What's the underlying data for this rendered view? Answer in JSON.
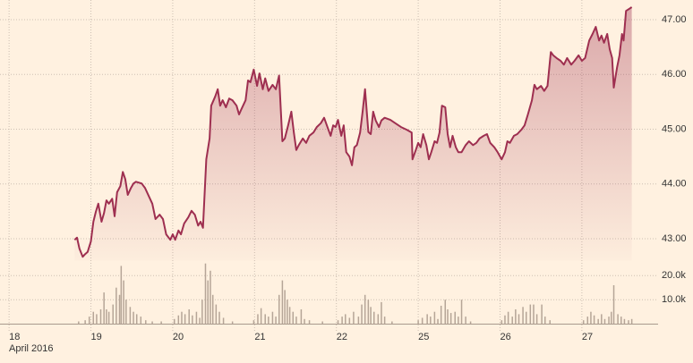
{
  "chart_data": [
    {
      "type": "area",
      "color": "#9e2f50",
      "x": [
        0.8,
        0.83,
        0.86,
        0.9,
        0.93,
        0.96,
        1.0,
        1.03,
        1.06,
        1.09,
        1.13,
        1.16,
        1.19,
        1.22,
        1.26,
        1.29,
        1.32,
        1.36,
        1.39,
        1.42,
        1.45,
        1.49,
        1.52,
        1.55,
        1.62,
        1.66,
        1.71,
        1.75,
        1.79,
        1.84,
        1.88,
        1.92,
        1.97,
        2.0,
        2.03,
        2.07,
        2.1,
        2.14,
        2.19,
        2.23,
        2.27,
        2.31,
        2.34,
        2.37,
        2.41,
        2.45,
        2.47,
        2.52,
        2.55,
        2.58,
        2.61,
        2.65,
        2.69,
        2.73,
        2.78,
        2.81,
        2.84,
        2.89,
        2.92,
        2.95,
        2.99,
        3.03,
        3.06,
        3.1,
        3.13,
        3.17,
        3.22,
        3.26,
        3.3,
        3.34,
        3.37,
        3.41,
        3.45,
        3.48,
        3.51,
        3.54,
        3.59,
        3.63,
        3.67,
        3.72,
        3.76,
        3.81,
        3.85,
        3.89,
        3.93,
        3.96,
        3.99,
        4.02,
        4.06,
        4.09,
        4.12,
        4.16,
        4.19,
        4.22,
        4.25,
        4.29,
        4.32,
        4.35,
        4.39,
        4.42,
        4.45,
        4.48,
        4.52,
        4.55,
        4.59,
        4.66,
        4.72,
        4.79,
        4.86,
        4.92,
        4.93,
        4.97,
        5.0,
        5.03,
        5.06,
        5.1,
        5.13,
        5.16,
        5.2,
        5.23,
        5.26,
        5.29,
        5.33,
        5.36,
        5.39,
        5.42,
        5.46,
        5.49,
        5.53,
        5.58,
        5.62,
        5.67,
        5.71,
        5.75,
        5.8,
        5.84,
        5.88,
        5.93,
        5.97,
        6.02,
        6.06,
        6.09,
        6.12,
        6.17,
        6.21,
        6.26,
        6.3,
        6.34,
        6.39,
        6.42,
        6.45,
        6.5,
        6.54,
        6.58,
        6.62,
        6.65,
        6.69,
        6.74,
        6.78,
        6.82,
        6.87,
        6.91,
        6.96,
        7.0,
        7.04,
        7.09,
        7.13,
        7.17,
        7.21,
        7.24,
        7.27,
        7.31,
        7.34,
        7.37,
        7.39,
        7.43,
        7.46,
        7.49,
        7.51,
        7.54,
        7.58,
        7.61
      ],
      "values": [
        42.98,
        43.02,
        42.82,
        42.67,
        42.72,
        42.76,
        42.95,
        43.31,
        43.49,
        43.64,
        43.31,
        43.47,
        43.7,
        43.64,
        43.73,
        43.41,
        43.85,
        43.96,
        44.22,
        44.09,
        43.8,
        43.93,
        44.01,
        44.04,
        44.01,
        43.93,
        43.77,
        43.64,
        43.36,
        43.44,
        43.36,
        43.08,
        42.98,
        43.08,
        42.98,
        43.15,
        43.08,
        43.28,
        43.39,
        43.51,
        43.44,
        43.24,
        43.31,
        43.2,
        44.45,
        44.83,
        45.43,
        45.6,
        45.73,
        45.43,
        45.53,
        45.4,
        45.56,
        45.53,
        45.43,
        45.27,
        45.37,
        45.53,
        45.89,
        45.86,
        46.09,
        45.79,
        46.02,
        45.73,
        45.93,
        45.7,
        45.81,
        45.73,
        45.98,
        44.78,
        44.83,
        45.07,
        45.32,
        44.94,
        44.62,
        44.71,
        44.83,
        44.75,
        44.88,
        44.94,
        45.04,
        45.11,
        45.21,
        45.04,
        44.88,
        45.07,
        45.04,
        45.17,
        44.88,
        45.07,
        44.58,
        44.5,
        44.34,
        44.67,
        44.71,
        44.94,
        45.32,
        45.73,
        44.95,
        44.91,
        45.32,
        45.16,
        45.04,
        45.16,
        45.21,
        45.17,
        45.11,
        45.04,
        44.99,
        44.94,
        44.45,
        44.62,
        44.75,
        44.67,
        44.91,
        44.71,
        44.45,
        44.58,
        44.78,
        44.75,
        44.94,
        45.43,
        45.4,
        44.91,
        44.67,
        44.88,
        44.67,
        44.58,
        44.58,
        44.71,
        44.78,
        44.71,
        44.75,
        44.83,
        44.88,
        44.91,
        44.75,
        44.67,
        44.58,
        44.45,
        44.58,
        44.78,
        44.75,
        44.88,
        44.91,
        44.99,
        45.07,
        45.27,
        45.53,
        45.81,
        45.73,
        45.79,
        45.7,
        45.79,
        46.41,
        46.35,
        46.3,
        46.25,
        46.18,
        46.3,
        46.18,
        46.25,
        46.35,
        46.25,
        46.3,
        46.62,
        46.74,
        46.87,
        46.62,
        46.71,
        46.58,
        46.74,
        46.46,
        46.3,
        45.76,
        46.13,
        46.35,
        46.74,
        46.62,
        47.16,
        47.2,
        47.23
      ],
      "xlim": [
        -0.1,
        7.8
      ],
      "xticks": [
        {
          "value": 0,
          "label": "18"
        },
        {
          "value": 1,
          "label": "19"
        },
        {
          "value": 2,
          "label": "20"
        },
        {
          "value": 3,
          "label": "21"
        },
        {
          "value": 4,
          "label": "22"
        },
        {
          "value": 5,
          "label": "25"
        },
        {
          "value": 6,
          "label": "26"
        },
        {
          "value": 7,
          "label": "27"
        }
      ],
      "x_label": "April 2016",
      "ylim": [
        42.6,
        47.36
      ],
      "yticks": [
        {
          "value": 43,
          "label": "43.00"
        },
        {
          "value": 44,
          "label": "44.00"
        },
        {
          "value": 45,
          "label": "45.00"
        },
        {
          "value": 46,
          "label": "46.00"
        },
        {
          "value": 47,
          "label": "47.00"
        }
      ],
      "grid": true
    },
    {
      "type": "bar",
      "color": "#b5a597",
      "x": [
        0.85,
        0.93,
        0.98,
        1.03,
        1.07,
        1.12,
        1.16,
        1.19,
        1.22,
        1.27,
        1.31,
        1.35,
        1.37,
        1.4,
        1.43,
        1.48,
        1.52,
        1.56,
        1.61,
        1.67,
        1.75,
        1.86,
        2.02,
        2.07,
        2.11,
        2.15,
        2.2,
        2.24,
        2.29,
        2.33,
        2.36,
        2.4,
        2.43,
        2.46,
        2.49,
        2.53,
        2.57,
        2.62,
        2.73,
        2.99,
        3.04,
        3.08,
        3.13,
        3.17,
        3.22,
        3.26,
        3.3,
        3.34,
        3.37,
        3.4,
        3.43,
        3.47,
        3.51,
        3.57,
        3.61,
        3.67,
        3.83,
        4.02,
        4.07,
        4.11,
        4.16,
        4.21,
        4.27,
        4.31,
        4.35,
        4.39,
        4.42,
        4.46,
        4.51,
        4.55,
        4.59,
        4.68,
        5.0,
        5.05,
        5.11,
        5.15,
        5.2,
        5.24,
        5.28,
        5.33,
        5.36,
        5.4,
        5.45,
        5.49,
        5.53,
        5.58,
        5.64,
        6.02,
        6.06,
        6.1,
        6.15,
        6.19,
        6.23,
        6.28,
        6.32,
        6.37,
        6.41,
        6.45,
        6.51,
        6.55,
        6.61,
        7.02,
        7.07,
        7.11,
        7.15,
        7.2,
        7.24,
        7.28,
        7.33,
        7.36,
        7.39,
        7.44,
        7.48,
        7.52,
        7.57,
        7.61
      ],
      "values": [
        1000,
        1500,
        3000,
        5000,
        4000,
        6000,
        13000,
        6000,
        5000,
        8000,
        15000,
        12000,
        24000,
        18000,
        10000,
        7000,
        5000,
        4000,
        3000,
        1500,
        1000,
        1000,
        2000,
        3500,
        5000,
        4000,
        6000,
        3500,
        5000,
        2500,
        10000,
        25000,
        18000,
        22000,
        12000,
        8000,
        5000,
        2500,
        1000,
        1500,
        4000,
        6500,
        4000,
        3000,
        5000,
        3000,
        12000,
        18000,
        14000,
        10000,
        7000,
        5000,
        3000,
        6000,
        2000,
        1500,
        1000,
        1500,
        3000,
        4000,
        2500,
        5000,
        3000,
        8000,
        12000,
        10000,
        7000,
        5000,
        4000,
        9000,
        3000,
        1000,
        1500,
        2500,
        4000,
        3000,
        5000,
        2000,
        7500,
        10000,
        6000,
        4500,
        5000,
        3000,
        10000,
        3000,
        1000,
        1500,
        3500,
        5000,
        3000,
        6000,
        4000,
        7000,
        5000,
        8000,
        8000,
        4000,
        8000,
        3000,
        1500,
        1500,
        3000,
        5000,
        3500,
        2000,
        4000,
        2000,
        3000,
        5000,
        16000,
        4000,
        3000,
        2000,
        1500,
        2000
      ],
      "xlim": [
        -0.1,
        7.8
      ],
      "ylim": [
        0,
        26000
      ],
      "yticks": [
        {
          "value": 10000,
          "label": "10.0k"
        },
        {
          "value": 20000,
          "label": "20.0k"
        }
      ],
      "grid": true
    }
  ]
}
